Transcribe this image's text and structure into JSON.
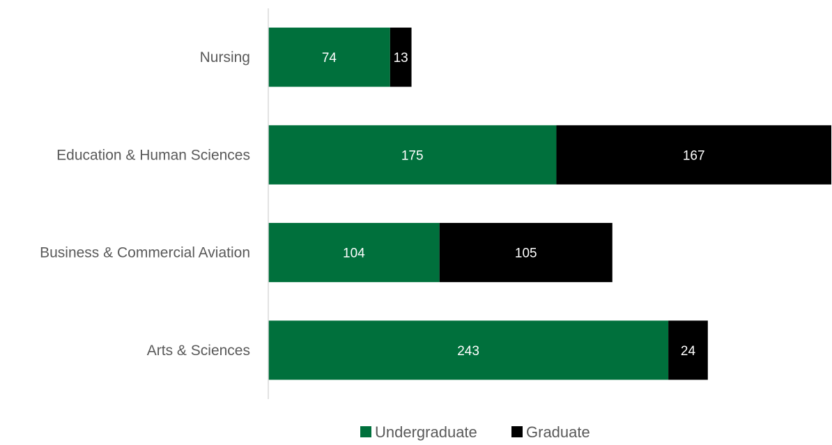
{
  "chart_data": {
    "type": "bar",
    "orientation": "horizontal",
    "stacked": true,
    "categories": [
      "Nursing",
      "Education & Human Sciences",
      "Business & Commercial Aviation",
      "Arts & Sciences"
    ],
    "series": [
      {
        "name": "Undergraduate",
        "color": "#00703c",
        "values": [
          74,
          175,
          104,
          243
        ]
      },
      {
        "name": "Graduate",
        "color": "#000000",
        "values": [
          13,
          167,
          105,
          24
        ]
      }
    ],
    "title": "",
    "xlabel": "",
    "ylabel": "",
    "xlim": [
      0,
      342
    ],
    "grid": false,
    "legend_position": "bottom",
    "axis_color": "#d9d9d9"
  }
}
